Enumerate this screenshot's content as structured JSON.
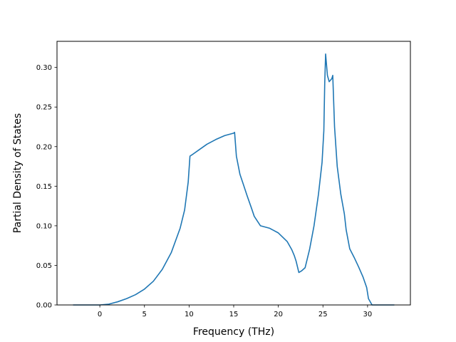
{
  "chart_data": {
    "type": "line",
    "title": "",
    "xlabel": "Frequency (THz)",
    "ylabel": "Partial Density of States",
    "xlim": [
      -4.8,
      34.8
    ],
    "ylim": [
      0.0,
      0.333
    ],
    "xticks": [
      0,
      5,
      10,
      15,
      20,
      25,
      30
    ],
    "xtick_labels": [
      "0",
      "5",
      "10",
      "15",
      "20",
      "25",
      "30"
    ],
    "yticks": [
      0.0,
      0.05,
      0.1,
      0.15,
      0.2,
      0.25,
      0.3
    ],
    "ytick_labels": [
      "0.00",
      "0.05",
      "0.10",
      "0.15",
      "0.20",
      "0.25",
      "0.30"
    ],
    "grid": false,
    "legend": "none",
    "series": [
      {
        "color": "#1f77b4",
        "x": [
          -3.0,
          0.0,
          1.0,
          2.0,
          3.0,
          4.0,
          5.0,
          6.0,
          7.0,
          8.0,
          9.0,
          9.5,
          9.9,
          10.1,
          10.5,
          11.0,
          12.0,
          13.0,
          14.0,
          15.0,
          15.1,
          15.3,
          15.7,
          16.0,
          16.5,
          17.0,
          17.3,
          18.0,
          19.0,
          20.0,
          21.0,
          21.5,
          21.8,
          22.0,
          22.3,
          22.6,
          23.0,
          23.5,
          24.0,
          24.5,
          24.9,
          25.1,
          25.2,
          25.3,
          25.5,
          25.7,
          26.0,
          26.1,
          26.3,
          26.6,
          27.0,
          27.4,
          27.6,
          28.0,
          28.5,
          29.0,
          29.5,
          29.9,
          30.1,
          30.5,
          33.0
        ],
        "y": [
          0.0,
          0.0,
          0.001,
          0.004,
          0.008,
          0.013,
          0.02,
          0.03,
          0.045,
          0.066,
          0.097,
          0.12,
          0.155,
          0.188,
          0.191,
          0.195,
          0.203,
          0.209,
          0.214,
          0.217,
          0.218,
          0.188,
          0.165,
          0.155,
          0.138,
          0.122,
          0.112,
          0.1,
          0.097,
          0.091,
          0.08,
          0.07,
          0.062,
          0.055,
          0.041,
          0.043,
          0.047,
          0.07,
          0.1,
          0.14,
          0.18,
          0.22,
          0.28,
          0.317,
          0.29,
          0.282,
          0.286,
          0.29,
          0.225,
          0.175,
          0.14,
          0.115,
          0.095,
          0.071,
          0.06,
          0.048,
          0.035,
          0.022,
          0.008,
          0.0,
          0.0
        ]
      }
    ]
  }
}
